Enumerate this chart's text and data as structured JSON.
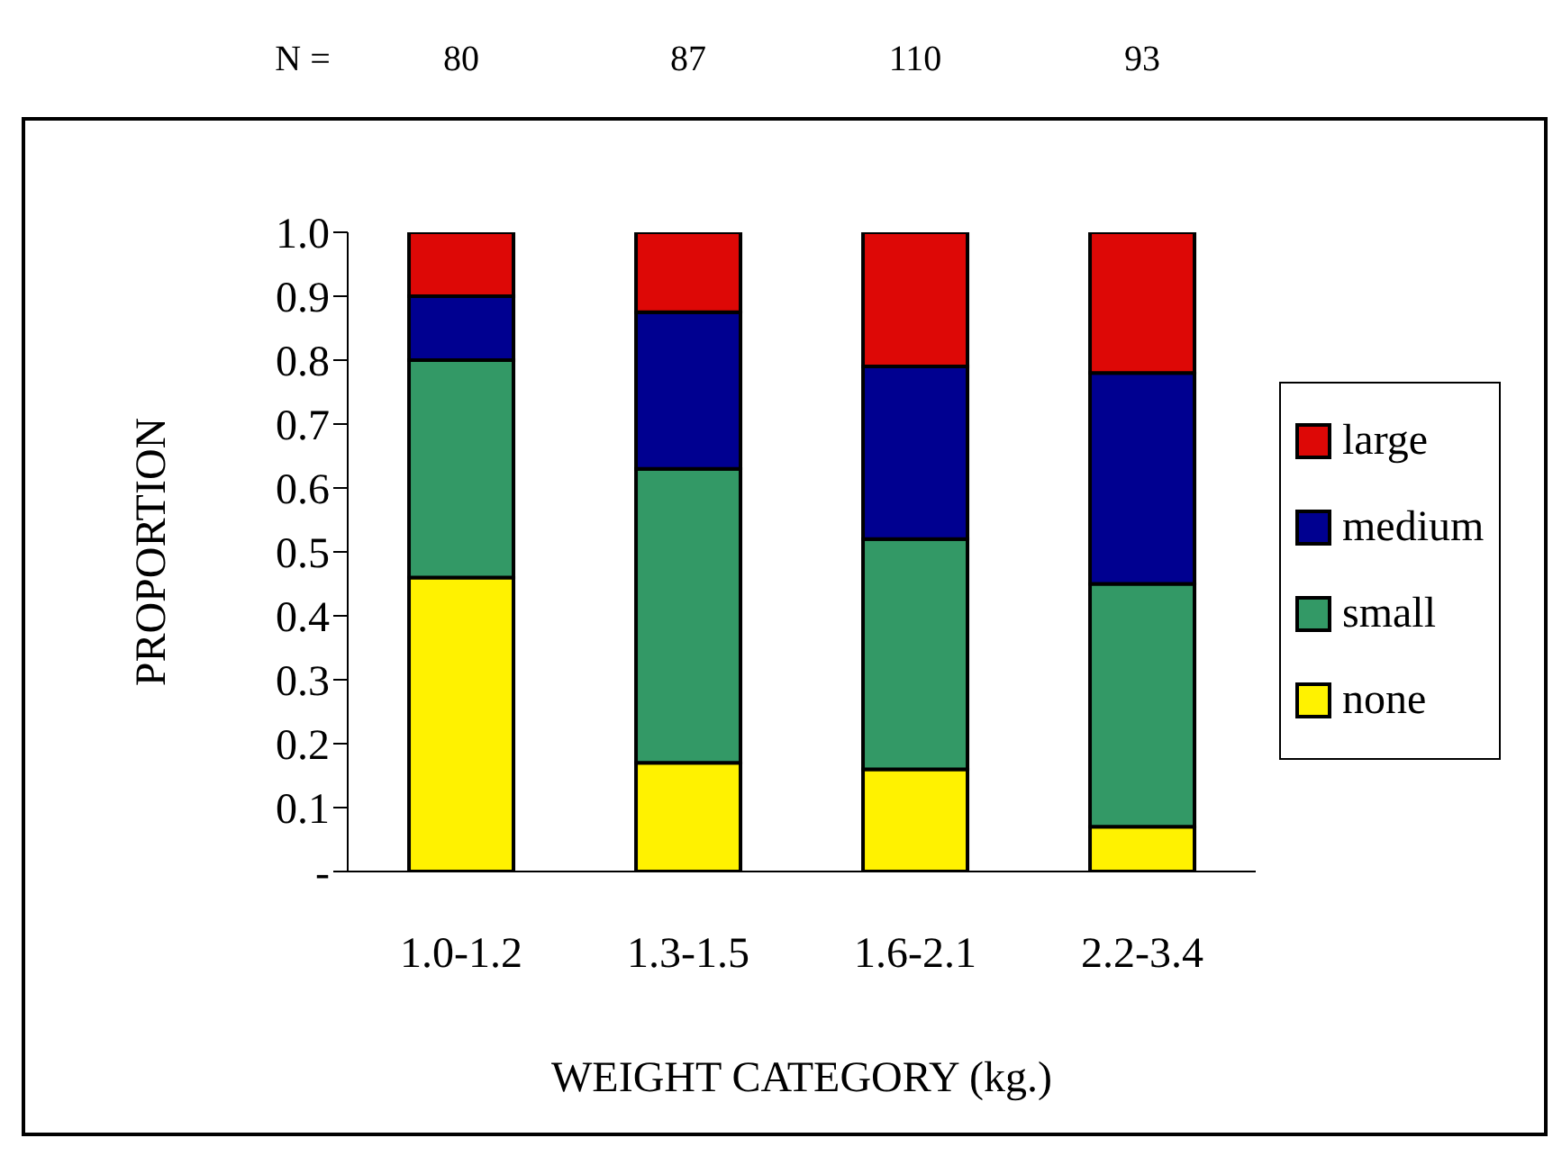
{
  "chart_data": {
    "type": "bar",
    "stacked": true,
    "xlabel": "WEIGHT CATEGORY (kg.)",
    "ylabel": "PROPORTION",
    "categories": [
      "1.0-1.2",
      "1.3-1.5",
      "1.6-2.1",
      "2.2-3.4"
    ],
    "series": [
      {
        "name": "none",
        "color": "#fff200",
        "values": [
          0.46,
          0.17,
          0.16,
          0.07
        ]
      },
      {
        "name": "small",
        "color": "#339966",
        "values": [
          0.34,
          0.46,
          0.36,
          0.38
        ]
      },
      {
        "name": "medium",
        "color": "#000090",
        "values": [
          0.1,
          0.245,
          0.27,
          0.33
        ]
      },
      {
        "name": "large",
        "color": "#dd0806",
        "values": [
          0.1,
          0.125,
          0.21,
          0.22
        ]
      }
    ],
    "ylim": [
      0,
      1
    ],
    "yticks": [
      {
        "value": 0,
        "label": "-"
      },
      {
        "value": 0.1,
        "label": "0.1"
      },
      {
        "value": 0.2,
        "label": "0.2"
      },
      {
        "value": 0.3,
        "label": "0.3"
      },
      {
        "value": 0.4,
        "label": "0.4"
      },
      {
        "value": 0.5,
        "label": "0.5"
      },
      {
        "value": 0.6,
        "label": "0.6"
      },
      {
        "value": 0.7,
        "label": "0.7"
      },
      {
        "value": 0.8,
        "label": "0.8"
      },
      {
        "value": 0.9,
        "label": "0.9"
      },
      {
        "value": 1,
        "label": "1.0"
      }
    ],
    "legend": "right",
    "annotations": [
      "N =",
      "80",
      "87",
      "110",
      "93"
    ]
  }
}
